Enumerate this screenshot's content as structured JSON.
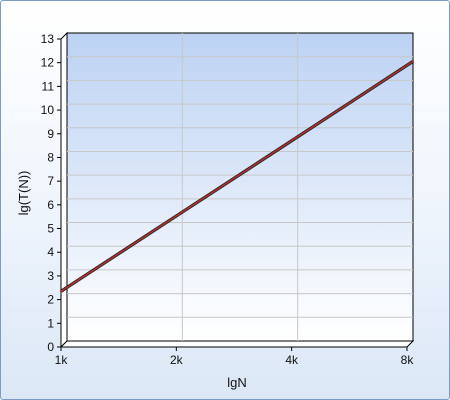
{
  "chart_data": {
    "type": "line",
    "xlabel": "lgN",
    "ylabel": "lg(T(N))",
    "x_scale": "log",
    "x_ticks": [
      "1k",
      "2k",
      "4k",
      "8k"
    ],
    "x_tick_values": [
      1000,
      2000,
      4000,
      8000
    ],
    "ylim": [
      0,
      13
    ],
    "y_ticks": [
      "0",
      "1",
      "2",
      "3",
      "4",
      "5",
      "6",
      "7",
      "8",
      "9",
      "10",
      "11",
      "12",
      "13"
    ],
    "grid": true,
    "legend": "none",
    "series": [
      {
        "color": "#b03030",
        "x": [
          1000,
          2000,
          4000,
          8000
        ],
        "y": [
          2.35,
          5.5,
          8.65,
          11.8
        ]
      }
    ],
    "colors": {
      "plot_top": "#bcd2f3",
      "plot_bottom": "#ffffff",
      "grid": "#c8c8c8",
      "line": "#b03030",
      "frame_border": "#7a9cc6"
    }
  }
}
